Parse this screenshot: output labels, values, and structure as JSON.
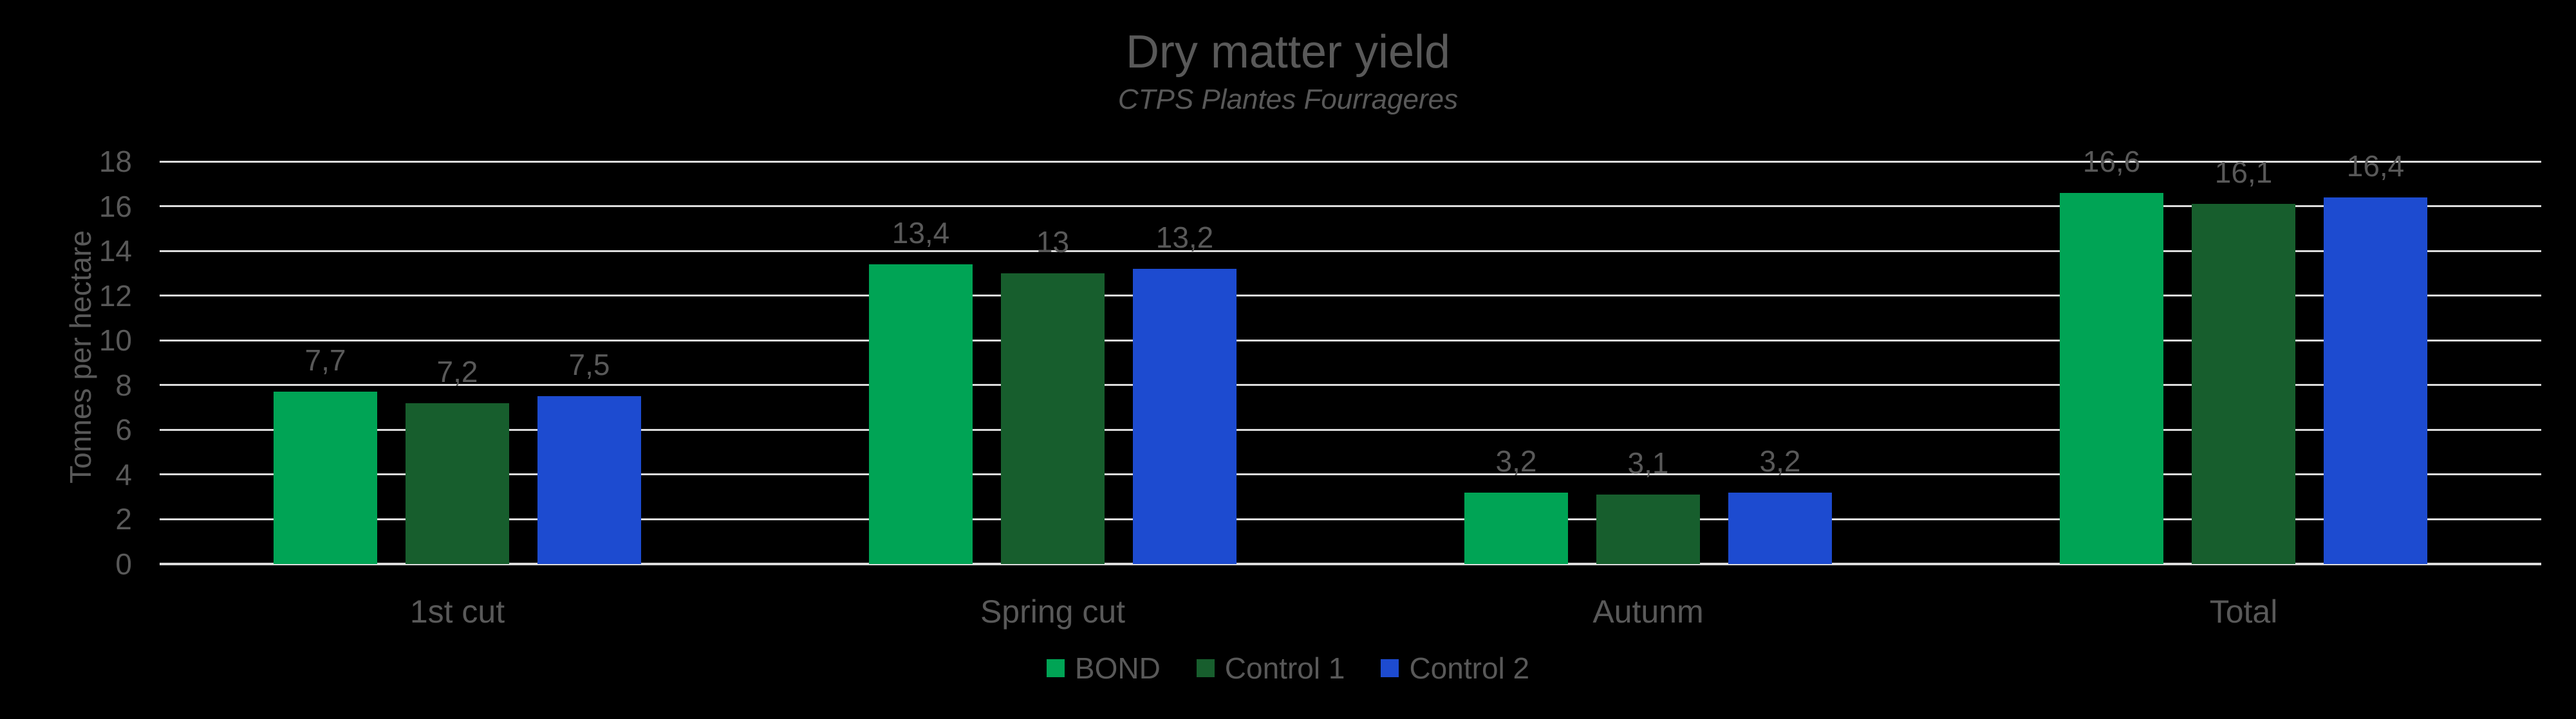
{
  "colors": {
    "background": "#000000",
    "text": "#595959",
    "gridline": "#DCDCDC",
    "series_bond": "#00A455",
    "series_control1": "#175E2D",
    "series_control2": "#1D4BD0"
  },
  "chart_data": {
    "type": "bar",
    "title": "Dry matter yield",
    "subtitle": "CTPS Plantes Fourrageres",
    "xlabel": "",
    "ylabel": "Tonnes per hectare",
    "categories": [
      "1st cut",
      "Spring cut",
      "Autunm",
      "Total"
    ],
    "series": [
      {
        "name": "BOND",
        "color": "#00A455",
        "values": [
          7.7,
          13.4,
          3.2,
          16.6
        ],
        "labels": [
          "7,7",
          "13,4",
          "3,2",
          "16,6"
        ]
      },
      {
        "name": "Control 1",
        "color": "#175E2D",
        "values": [
          7.2,
          13.0,
          3.1,
          16.1
        ],
        "labels": [
          "7,2",
          "13",
          "3,1",
          "16,1"
        ]
      },
      {
        "name": "Control 2",
        "color": "#1D4BD0",
        "values": [
          7.5,
          13.2,
          3.2,
          16.4
        ],
        "labels": [
          "7,5",
          "13,2",
          "3,2",
          "16,4"
        ]
      }
    ],
    "ylim": [
      0,
      18
    ],
    "y_ticks": [
      0,
      2,
      4,
      6,
      8,
      10,
      12,
      14,
      16,
      18
    ],
    "grid": true,
    "legend_position": "bottom"
  }
}
